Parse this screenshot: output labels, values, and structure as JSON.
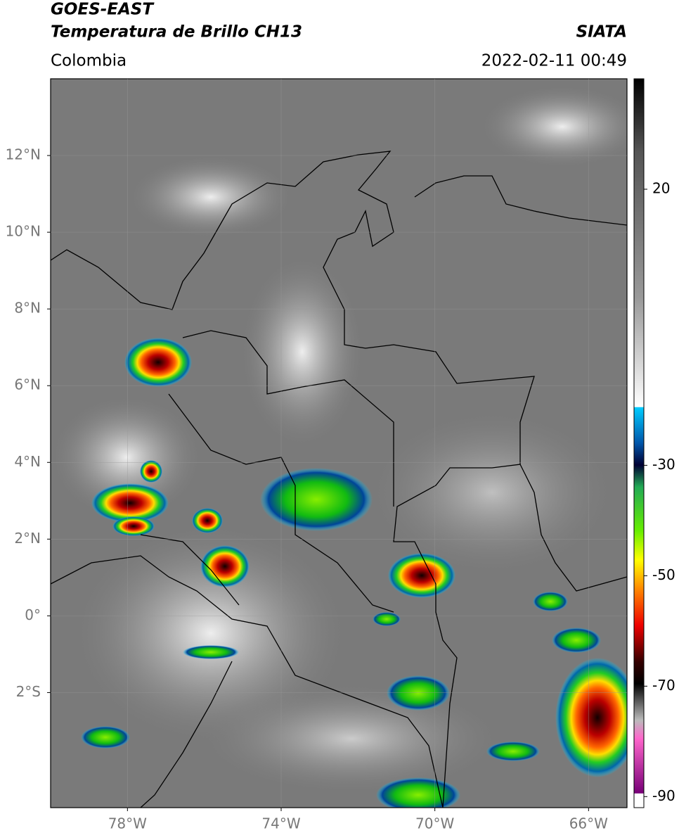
{
  "header": {
    "title": "GOES-EAST",
    "subtitle": "Temperatura de Brillo CH13",
    "source": "SIATA",
    "region": "Colombia",
    "timestamp": "2022-02-11 00:49"
  },
  "map": {
    "xlim": [
      -80,
      -65
    ],
    "ylim": [
      -5,
      14
    ],
    "xticks": [
      {
        "value": -78,
        "label": "78°W"
      },
      {
        "value": -74,
        "label": "74°W"
      },
      {
        "value": -70,
        "label": "70°W"
      },
      {
        "value": -66,
        "label": "66°W"
      }
    ],
    "yticks": [
      {
        "value": 12,
        "label": "12°N"
      },
      {
        "value": 10,
        "label": "10°N"
      },
      {
        "value": 8,
        "label": "8°N"
      },
      {
        "value": 6,
        "label": "6°N"
      },
      {
        "value": 4,
        "label": "4°N"
      },
      {
        "value": 2,
        "label": "2°N"
      },
      {
        "value": 0,
        "label": "0°"
      },
      {
        "value": -2,
        "label": "2°S"
      }
    ]
  },
  "colorbar": {
    "range": [
      -92,
      40
    ],
    "ticks": [
      20,
      -30,
      -50,
      -70,
      -90
    ]
  }
}
